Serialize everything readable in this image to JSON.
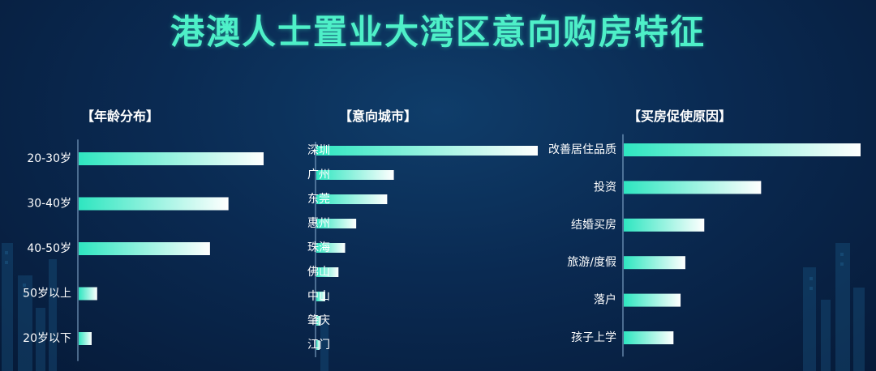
{
  "title": "港澳人士置业大湾区意向购房特征",
  "colors": {
    "bar_start": "#2ee6c0",
    "bar_end": "#ffffff",
    "title": "#4ef0c8",
    "text": "#ffffff"
  },
  "chart_data": [
    {
      "type": "bar",
      "orientation": "horizontal",
      "title": "【年龄分布】",
      "categories": [
        "20-30岁",
        "30-40岁",
        "40-50岁",
        "50岁以上",
        "20岁以下"
      ],
      "values": [
        100,
        81,
        71,
        10,
        7
      ],
      "xlim": [
        0,
        100
      ],
      "axis_labels": false,
      "grid": false
    },
    {
      "type": "bar",
      "orientation": "horizontal",
      "title": "【意向城市】",
      "categories": [
        "深圳",
        "广州",
        "东莞",
        "惠州",
        "珠海",
        "佛山",
        "中山",
        "肇庆",
        "江门"
      ],
      "values": [
        100,
        35,
        32,
        18,
        13,
        10,
        4,
        2,
        1
      ],
      "xlim": [
        0,
        100
      ],
      "axis_labels": false,
      "grid": false
    },
    {
      "type": "bar",
      "orientation": "horizontal",
      "title": "【买房促使原因】",
      "categories": [
        "改善居住品质",
        "投资",
        "结婚买房",
        "旅游/度假",
        "落户",
        "孩子上学"
      ],
      "values": [
        100,
        58,
        34,
        26,
        24,
        21
      ],
      "xlim": [
        0,
        100
      ],
      "axis_labels": false,
      "grid": false
    }
  ]
}
